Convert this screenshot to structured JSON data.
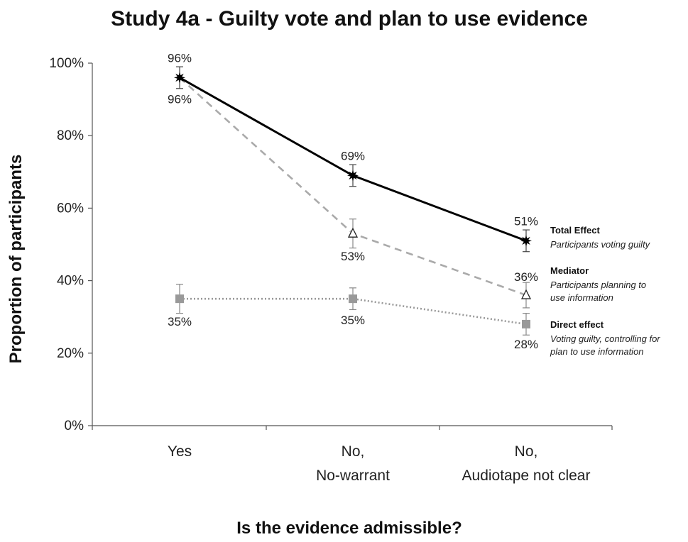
{
  "chart_data": {
    "type": "line",
    "title": "Study 4a  - Guilty vote and plan to use evidence",
    "xlabel": "Is the evidence admissible?",
    "ylabel": "Proportion of participants",
    "ylim": [
      0,
      100
    ],
    "yticks": [
      "0%",
      "20%",
      "40%",
      "60%",
      "80%",
      "100%"
    ],
    "categories": [
      [
        "Yes"
      ],
      [
        "No,",
        "No-warrant"
      ],
      [
        "No,",
        "Audiotape not clear"
      ]
    ],
    "grid": false,
    "legend_position": "right",
    "series": [
      {
        "name": "Total Effect",
        "description": [
          "Participants voting guilty"
        ],
        "values": [
          96,
          69,
          51
        ],
        "labels": [
          "96%",
          "69%",
          "51%"
        ],
        "errors": [
          3,
          3,
          3
        ],
        "color": "#000000",
        "line_style": "solid",
        "marker": "star"
      },
      {
        "name": "Mediator",
        "description": [
          "Participants planning to",
          "use information"
        ],
        "values": [
          96,
          53,
          36
        ],
        "labels": [
          "96%",
          "53%",
          "36%"
        ],
        "errors": [
          0,
          4,
          3.5
        ],
        "color": "#aaaaaa",
        "line_style": "dashed",
        "marker": "triangle"
      },
      {
        "name": "Direct effect",
        "description": [
          "Voting guilty, controlling for",
          "plan to use information"
        ],
        "values": [
          35,
          35,
          28
        ],
        "labels": [
          "35%",
          "35%",
          "28%"
        ],
        "errors": [
          4,
          3,
          3
        ],
        "color": "#999999",
        "line_style": "dotted",
        "marker": "square"
      }
    ]
  }
}
